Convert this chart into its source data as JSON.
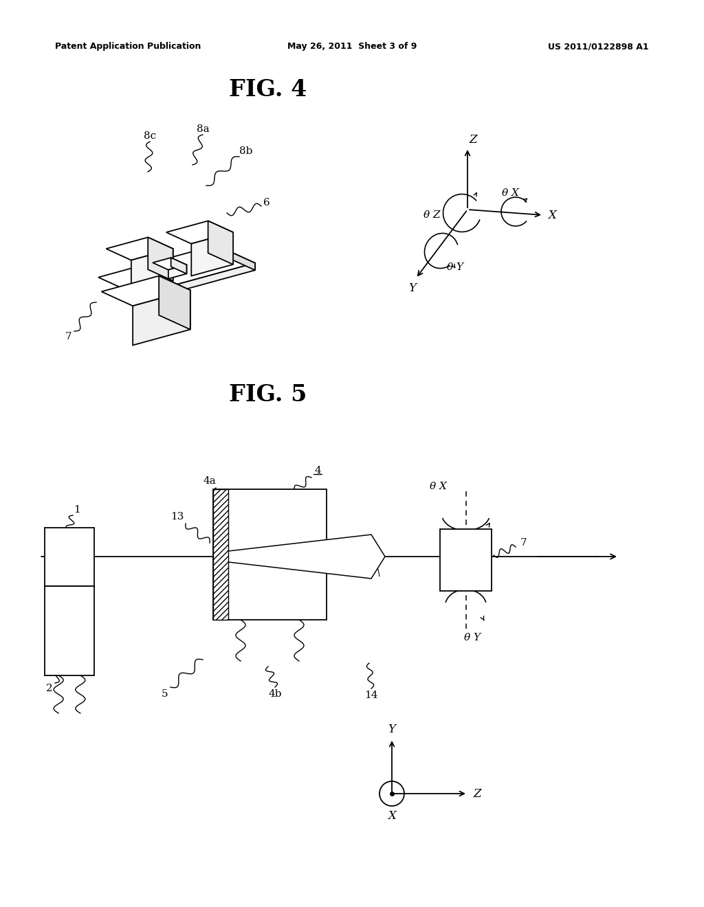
{
  "header_left": "Patent Application Publication",
  "header_mid": "May 26, 2011  Sheet 3 of 9",
  "header_right": "US 2011/0122898 A1",
  "fig4_title": "FIG. 4",
  "fig5_title": "FIG. 5",
  "bg_color": "#ffffff"
}
